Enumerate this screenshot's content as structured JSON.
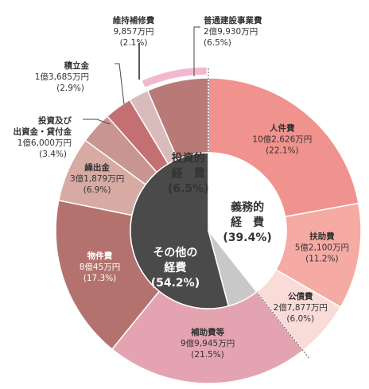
{
  "chart_data": {
    "type": "pie",
    "inner_ring": [
      {
        "name_lines": [
          "義務的",
          "経　費"
        ],
        "pct": "(39.4%)",
        "value": 39.4,
        "color": "#ffffff",
        "text_color": "#333333"
      },
      {
        "name_lines": [
          "投資的",
          "経　費"
        ],
        "pct": "(6.5%)",
        "value": 6.5,
        "color": "#c8c8c8",
        "text_color": "#333333"
      },
      {
        "name_lines": [
          "その他の",
          "経費"
        ],
        "pct": "(54.2%)",
        "value": 54.2,
        "color": "#4a4a4a",
        "text_color": "#ffffff"
      }
    ],
    "outer_ring": [
      {
        "name": "人件費",
        "amount": "10億2,626万円",
        "pct": "(22.1%)",
        "value": 22.1,
        "color": "#f0928d",
        "placement": "inside",
        "text_color": "#333333"
      },
      {
        "name": "扶助費",
        "amount": "5億2,100万円",
        "pct": "(11.2%)",
        "value": 11.2,
        "color": "#f5aaa4",
        "placement": "inside",
        "text_color": "#333333"
      },
      {
        "name": "公債費",
        "amount": "2億7,877万円",
        "pct": "(6.0%)",
        "value": 6.0,
        "color": "#f9dcd8",
        "placement": "inside",
        "text_color": "#333333"
      },
      {
        "name": "補助費等",
        "amount": "9億9,945万円",
        "pct": "(21.5%)",
        "value": 21.5,
        "color": "#e4a3b0",
        "placement": "inside",
        "text_color": "#333333"
      },
      {
        "name": "物件費",
        "amount": "8億45万円",
        "pct": "(17.3%)",
        "value": 17.3,
        "color": "#b4726e",
        "placement": "inside",
        "text_color": "#ffffff"
      },
      {
        "name": "繰出金",
        "amount": "3億1,879万円",
        "pct": "(6.9%)",
        "value": 6.9,
        "color": "#d7aaa4",
        "placement": "inside",
        "text_color": "#333333"
      },
      {
        "name": "投資及び出資金・貸付金",
        "name_lines": [
          "投資及び",
          "出資金・貸付金"
        ],
        "amount": "1億6,000万円",
        "pct": "(3.4%)",
        "value": 3.4,
        "color": "#c89590",
        "placement": "outside"
      },
      {
        "name": "積立金",
        "amount": "1億3,685万円",
        "pct": "(2.9%)",
        "value": 2.9,
        "color": "#c46f72",
        "placement": "outside"
      },
      {
        "name": "維持補修費",
        "amount": "9,857万円",
        "pct": "(2.1%)",
        "value": 2.1,
        "color": "#d9bbbb",
        "placement": "outside"
      },
      {
        "name": "普通建設事業費",
        "amount": "2億9,930万円",
        "pct": "(6.5%)",
        "value": 6.5,
        "color": "#b97a77",
        "placement": "outside"
      }
    ]
  }
}
